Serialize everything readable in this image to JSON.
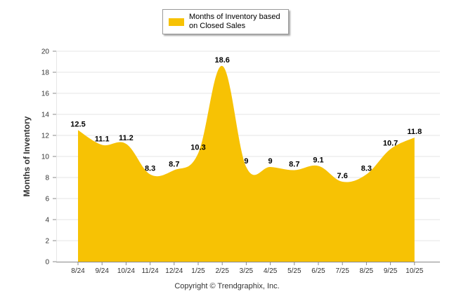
{
  "colors": {
    "series": "#f7c204",
    "grid": "#e6e6e6",
    "axis": "#888888",
    "text": "#333333"
  },
  "chart_data": {
    "type": "area",
    "title": "",
    "xlabel": "",
    "ylabel": "Months of Inventory",
    "ylim": [
      0,
      20
    ],
    "yticks": [
      0,
      2,
      4,
      6,
      8,
      10,
      12,
      14,
      16,
      18,
      20
    ],
    "grid": true,
    "legend_position": "top-center",
    "categories": [
      "8/24",
      "9/24",
      "10/24",
      "11/24",
      "12/24",
      "1/25",
      "2/25",
      "3/25",
      "4/25",
      "5/25",
      "6/25",
      "7/25",
      "8/25",
      "9/25",
      "10/25"
    ],
    "series": [
      {
        "name": "Months of Inventory based on Closed Sales",
        "values": [
          12.5,
          11.1,
          11.2,
          8.3,
          8.7,
          10.3,
          18.6,
          9,
          9,
          8.7,
          9.1,
          7.6,
          8.3,
          10.7,
          11.8
        ],
        "labels": [
          "12.5",
          "11.1",
          "11.2",
          "8.3",
          "8.7",
          "10.3",
          "18.6",
          "9",
          "9",
          "8.7",
          "9.1",
          "7.6",
          "8.3",
          "10.7",
          "11.8"
        ]
      }
    ]
  },
  "legend": {
    "label": "Months of Inventory based on Closed Sales"
  },
  "footer": {
    "copyright": "Copyright © Trendgraphix, Inc."
  }
}
